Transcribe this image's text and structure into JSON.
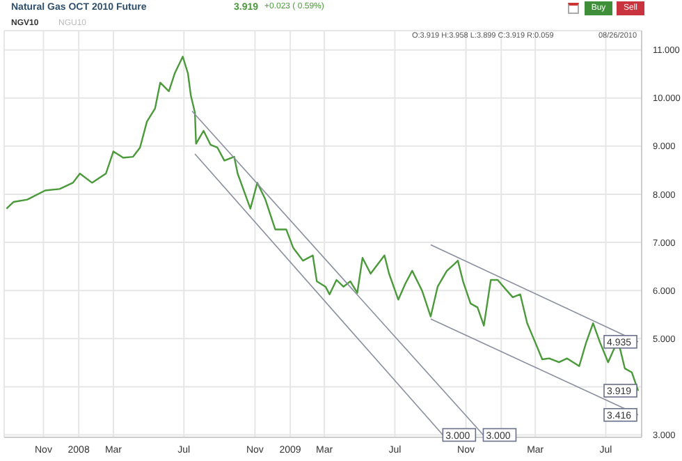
{
  "chart_data": {
    "type": "line",
    "title": "Natural Gas OCT 2010 Future",
    "annotations": [
      "3.919",
      "+0.023 ( 0.59%)",
      "Buy",
      "Sell",
      "NGV10",
      "NGU10",
      "O:3.919 H:3.958 L:3.899 C:3.919 R:0.059",
      "08/26/2010",
      {
        "text": "3.000",
        "x": "2009-09-22",
        "y": 3.0
      },
      {
        "text": "3.000",
        "x": "2009-12-01",
        "y": 3.0
      },
      {
        "text": "4.935",
        "x": "2010-08-26",
        "y": 4.935
      },
      {
        "text": "3.919",
        "x": "2010-08-26",
        "y": 3.919
      },
      {
        "text": "3.416",
        "x": "2010-08-26",
        "y": 3.416
      }
    ],
    "series": [
      {
        "color": "#4a9a3a",
        "x": [
          "2007-08-29",
          "2007-09-10",
          "2007-10-04",
          "2007-11-04",
          "2007-11-29",
          "2007-12-22",
          "2008-01-03",
          "2008-01-24",
          "2008-02-17",
          "2008-03-01",
          "2008-03-18",
          "2008-04-04",
          "2008-04-16",
          "2008-04-28",
          "2008-05-12",
          "2008-05-21",
          "2008-06-05",
          "2008-06-15",
          "2008-06-29",
          "2008-07-08",
          "2008-07-13",
          "2008-07-20",
          "2008-07-22",
          "2008-08-04",
          "2008-08-16",
          "2008-08-28",
          "2008-09-09",
          "2008-09-26",
          "2008-10-02",
          "2008-10-24",
          "2008-11-05",
          "2008-11-19",
          "2008-12-06",
          "2008-12-25",
          "2009-01-06",
          "2009-01-23",
          "2009-02-09",
          "2009-02-16",
          "2009-03-03",
          "2009-03-10",
          "2009-03-22",
          "2009-04-03",
          "2009-04-15",
          "2009-04-27",
          "2009-05-06",
          "2009-05-20",
          "2009-06-13",
          "2009-06-21",
          "2009-07-07",
          "2009-07-19",
          "2009-07-31",
          "2009-08-17",
          "2009-09-01",
          "2009-09-13",
          "2009-09-29",
          "2009-10-11",
          "2009-10-18",
          "2009-10-27",
          "2009-11-09",
          "2009-11-21",
          "2009-12-02",
          "2009-12-14",
          "2009-12-26",
          "2010-01-07",
          "2010-01-21",
          "2010-02-03",
          "2010-02-15",
          "2010-03-01",
          "2010-03-13",
          "2010-03-25",
          "2010-04-11",
          "2010-04-25",
          "2010-05-16",
          "2010-05-28",
          "2010-06-09",
          "2010-06-21",
          "2010-07-05",
          "2010-07-22",
          "2010-08-03",
          "2010-08-15",
          "2010-08-26"
        ],
        "values": [
          7.7,
          7.84,
          7.89,
          8.08,
          8.11,
          8.24,
          8.43,
          8.24,
          8.43,
          8.89,
          8.76,
          8.78,
          8.97,
          9.51,
          9.78,
          10.32,
          10.14,
          10.51,
          10.86,
          10.51,
          10.05,
          9.7,
          9.05,
          9.32,
          9.03,
          8.97,
          8.7,
          8.78,
          8.43,
          7.7,
          8.24,
          7.89,
          7.27,
          7.27,
          6.89,
          6.62,
          6.73,
          6.19,
          6.08,
          5.92,
          6.22,
          6.08,
          6.19,
          5.95,
          6.68,
          6.35,
          6.73,
          6.35,
          5.81,
          6.14,
          6.41,
          6.0,
          5.46,
          6.08,
          6.41,
          6.54,
          6.62,
          6.19,
          5.73,
          5.65,
          5.27,
          6.22,
          6.22,
          6.05,
          5.86,
          5.92,
          5.32,
          4.92,
          4.57,
          4.59,
          4.51,
          4.59,
          4.43,
          4.92,
          5.32,
          4.92,
          4.51,
          4.97,
          4.38,
          4.3,
          3.919
        ]
      },
      {
        "color": "#8a8fa0",
        "x": [
          "2008-07-15",
          "2009-12-01"
        ],
        "values": [
          9.73,
          3.0
        ]
      },
      {
        "color": "#8a8fa0",
        "x": [
          "2008-07-20",
          "2009-09-22"
        ],
        "values": [
          8.84,
          3.0
        ]
      },
      {
        "color": "#8a8fa0",
        "x": [
          "2009-09-01",
          "2010-08-26"
        ],
        "values": [
          6.95,
          4.935
        ]
      },
      {
        "color": "#8a8fa0",
        "x": [
          "2009-09-01",
          "2010-08-26"
        ],
        "values": [
          5.41,
          3.416
        ]
      }
    ],
    "xlim": [
      "2007-08-25",
      "2010-09-01"
    ],
    "xticks": [
      {
        "value": "2007-11-01",
        "label": "Nov"
      },
      {
        "value": "2008-01-01",
        "label": "2008"
      },
      {
        "value": "2008-03-01",
        "label": "Mar"
      },
      {
        "value": "2008-07-01",
        "label": "Jul"
      },
      {
        "value": "2008-11-01",
        "label": "Nov"
      },
      {
        "value": "2009-01-01",
        "label": "2009"
      },
      {
        "value": "2009-03-01",
        "label": "Mar"
      },
      {
        "value": "2009-07-01",
        "label": "Jul"
      },
      {
        "value": "2009-11-01",
        "label": "Nov"
      },
      {
        "value": "2010-01-01",
        "label": null
      },
      {
        "value": "2010-03-01",
        "label": "Mar"
      },
      {
        "value": "2010-07-01",
        "label": "Jul"
      }
    ],
    "ylim": [
      2.95,
      11.4
    ],
    "yticks": [
      {
        "value": 3,
        "label": "3.000"
      },
      {
        "value": 4,
        "label": null
      },
      {
        "value": 5,
        "label": "5.000"
      },
      {
        "value": 6,
        "label": "6.000"
      },
      {
        "value": 7,
        "label": "7.000"
      },
      {
        "value": 8,
        "label": "8.000"
      },
      {
        "value": 9,
        "label": "9.000"
      },
      {
        "value": 10,
        "label": "10.000"
      },
      {
        "value": 11,
        "label": "11.000"
      }
    ],
    "grid": true,
    "legend": false,
    "marker": "none",
    "line_style": "solid"
  }
}
